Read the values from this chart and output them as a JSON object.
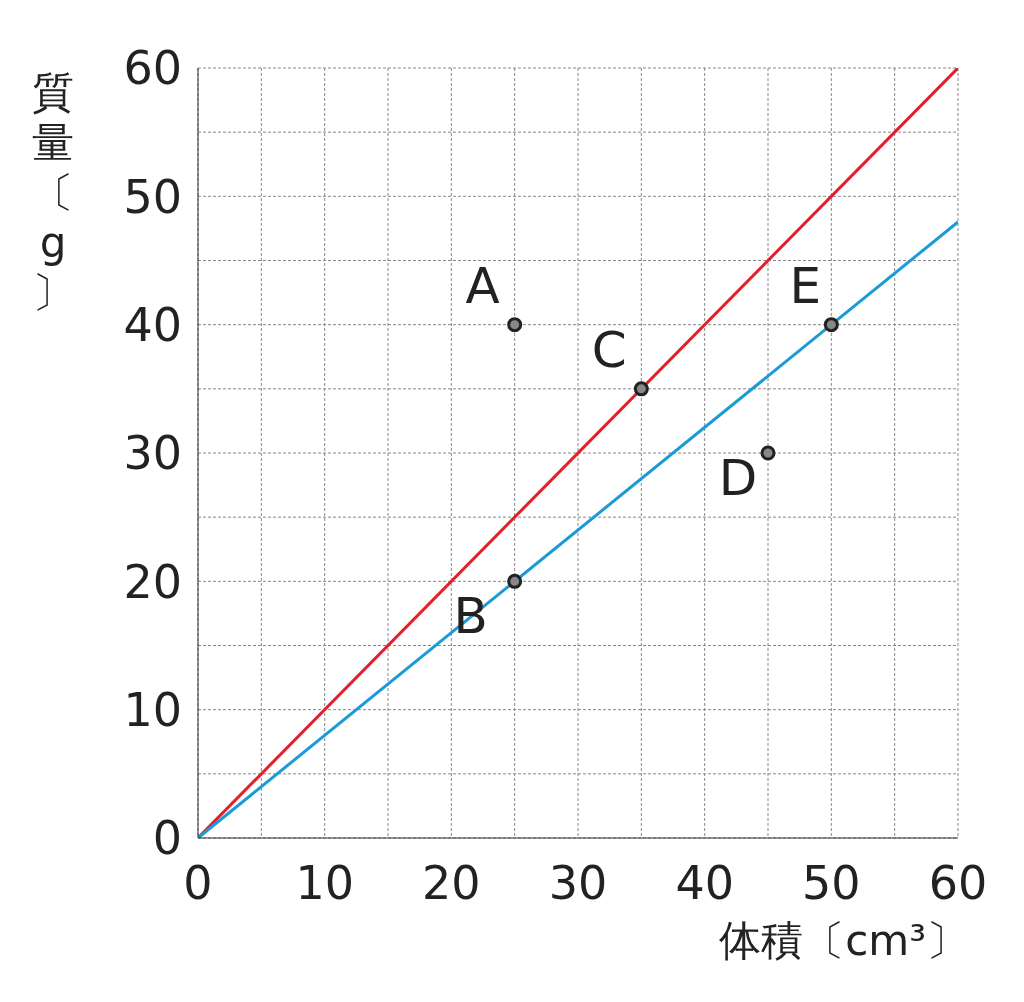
{
  "chart_data": {
    "type": "scatter",
    "xlabel": "体積〔cm³〕",
    "ylabel": "質量〔g〕",
    "xlim": [
      0,
      60
    ],
    "ylim": [
      0,
      60
    ],
    "xticks": [
      0,
      {
        "value": 5,
        "label": null
      },
      10,
      {
        "value": 15,
        "label": null
      },
      20,
      {
        "value": 25,
        "label": null
      },
      30,
      {
        "value": 35,
        "label": null
      },
      40,
      {
        "value": 45,
        "label": null
      },
      50,
      {
        "value": 55,
        "label": null
      },
      60
    ],
    "yticks": [
      0,
      {
        "value": 5,
        "label": null
      },
      10,
      {
        "value": 15,
        "label": null
      },
      20,
      {
        "value": 25,
        "label": null
      },
      30,
      {
        "value": 35,
        "label": null
      },
      40,
      {
        "value": 45,
        "label": null
      },
      50,
      {
        "value": 55,
        "label": null
      },
      60
    ],
    "grid": true,
    "series": [
      {
        "type": "line",
        "color": "#e0202a",
        "x": [
          0,
          60
        ],
        "values": [
          0,
          60
        ],
        "marker": "none",
        "line_style": "solid"
      },
      {
        "type": "line",
        "color": "#1a9ad6",
        "x": [
          0,
          60
        ],
        "values": [
          0,
          48
        ],
        "marker": "none",
        "line_style": "solid"
      },
      {
        "color": "#222222",
        "x": [
          25,
          25,
          35,
          45,
          50
        ],
        "values": [
          40,
          20,
          35,
          30,
          40
        ],
        "marker": "circle"
      }
    ],
    "annotations": [
      {
        "text": "A",
        "x": 25,
        "y": 40
      },
      {
        "text": "B",
        "x": 25,
        "y": 20
      },
      {
        "text": "C",
        "x": 35,
        "y": 35
      },
      {
        "text": "D",
        "x": 45,
        "y": 30
      },
      {
        "text": "E",
        "x": 50,
        "y": 40
      }
    ]
  }
}
